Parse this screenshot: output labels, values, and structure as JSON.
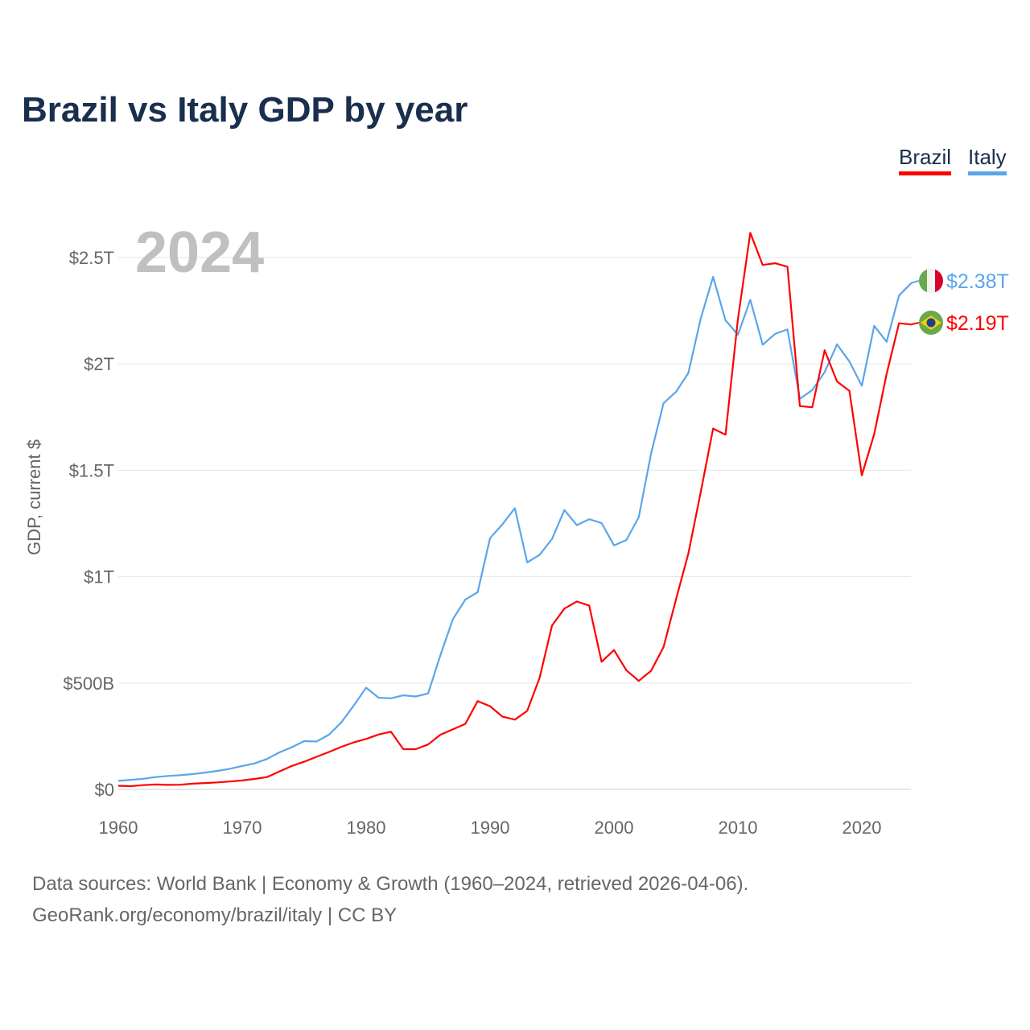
{
  "title": "Brazil vs Italy GDP by year",
  "legend": [
    {
      "name": "Brazil",
      "color": "#ff0000"
    },
    {
      "name": "Italy",
      "color": "#5ba5ec"
    }
  ],
  "footer": {
    "line1": "Data sources: World Bank | Economy & Growth (1960–2024, retrieved 2026-04-06).",
    "line2": "GeoRank.org/economy/brazil/italy | CC BY"
  },
  "chart_data": {
    "type": "line",
    "title": "Brazil vs Italy GDP by year",
    "year_watermark": "2024",
    "xlabel": "",
    "ylabel": "GDP, current $",
    "xlim": [
      1960,
      2024
    ],
    "ylim": [
      0,
      2.5
    ],
    "x_ticks": [
      {
        "v": 1960,
        "label": "1960"
      },
      {
        "v": 1970,
        "label": "1970"
      },
      {
        "v": 1980,
        "label": "1980"
      },
      {
        "v": 1990,
        "label": "1990"
      },
      {
        "v": 2000,
        "label": "2000"
      },
      {
        "v": 2010,
        "label": "2010"
      },
      {
        "v": 2020,
        "label": "2020"
      }
    ],
    "y_ticks": [
      {
        "v": 0,
        "label": "$0"
      },
      {
        "v": 0.5,
        "label": "$500B"
      },
      {
        "v": 1,
        "label": "$1T"
      },
      {
        "v": 1.5,
        "label": "$1.5T"
      },
      {
        "v": 2,
        "label": "$2T"
      },
      {
        "v": 2.5,
        "label": "$2.5T"
      }
    ],
    "units": "trillion USD",
    "x_start": 1960,
    "series": [
      {
        "name": "Italy",
        "color": "#5ba5ec",
        "end_label": "$2.38T",
        "flag": "italy-flag",
        "values": [
          0.04,
          0.045,
          0.05,
          0.058,
          0.063,
          0.067,
          0.072,
          0.079,
          0.087,
          0.097,
          0.11,
          0.122,
          0.143,
          0.174,
          0.198,
          0.227,
          0.225,
          0.257,
          0.315,
          0.394,
          0.478,
          0.431,
          0.428,
          0.442,
          0.437,
          0.451,
          0.632,
          0.8,
          0.892,
          0.927,
          1.181,
          1.246,
          1.322,
          1.067,
          1.103,
          1.177,
          1.313,
          1.242,
          1.27,
          1.252,
          1.147,
          1.172,
          1.28,
          1.58,
          1.815,
          1.868,
          1.957,
          2.213,
          2.409,
          2.205,
          2.137,
          2.301,
          2.09,
          2.141,
          2.162,
          1.836,
          1.877,
          1.961,
          2.092,
          2.011,
          1.897,
          2.179,
          2.104,
          2.321,
          2.38
        ]
      },
      {
        "name": "Brazil",
        "color": "#ff0000",
        "end_label": "$2.19T",
        "flag": "brazil-flag",
        "values": [
          0.017,
          0.015,
          0.02,
          0.023,
          0.021,
          0.022,
          0.027,
          0.03,
          0.033,
          0.037,
          0.042,
          0.049,
          0.058,
          0.084,
          0.11,
          0.13,
          0.153,
          0.176,
          0.2,
          0.221,
          0.237,
          0.258,
          0.271,
          0.189,
          0.189,
          0.211,
          0.257,
          0.282,
          0.308,
          0.415,
          0.391,
          0.342,
          0.328,
          0.369,
          0.525,
          0.77,
          0.85,
          0.883,
          0.864,
          0.6,
          0.655,
          0.56,
          0.51,
          0.558,
          0.669,
          0.892,
          1.108,
          1.397,
          1.696,
          1.667,
          2.209,
          2.616,
          2.465,
          2.473,
          2.456,
          1.802,
          1.796,
          2.064,
          1.917,
          1.873,
          1.476,
          1.67,
          1.952,
          2.191,
          2.185
        ]
      }
    ]
  }
}
